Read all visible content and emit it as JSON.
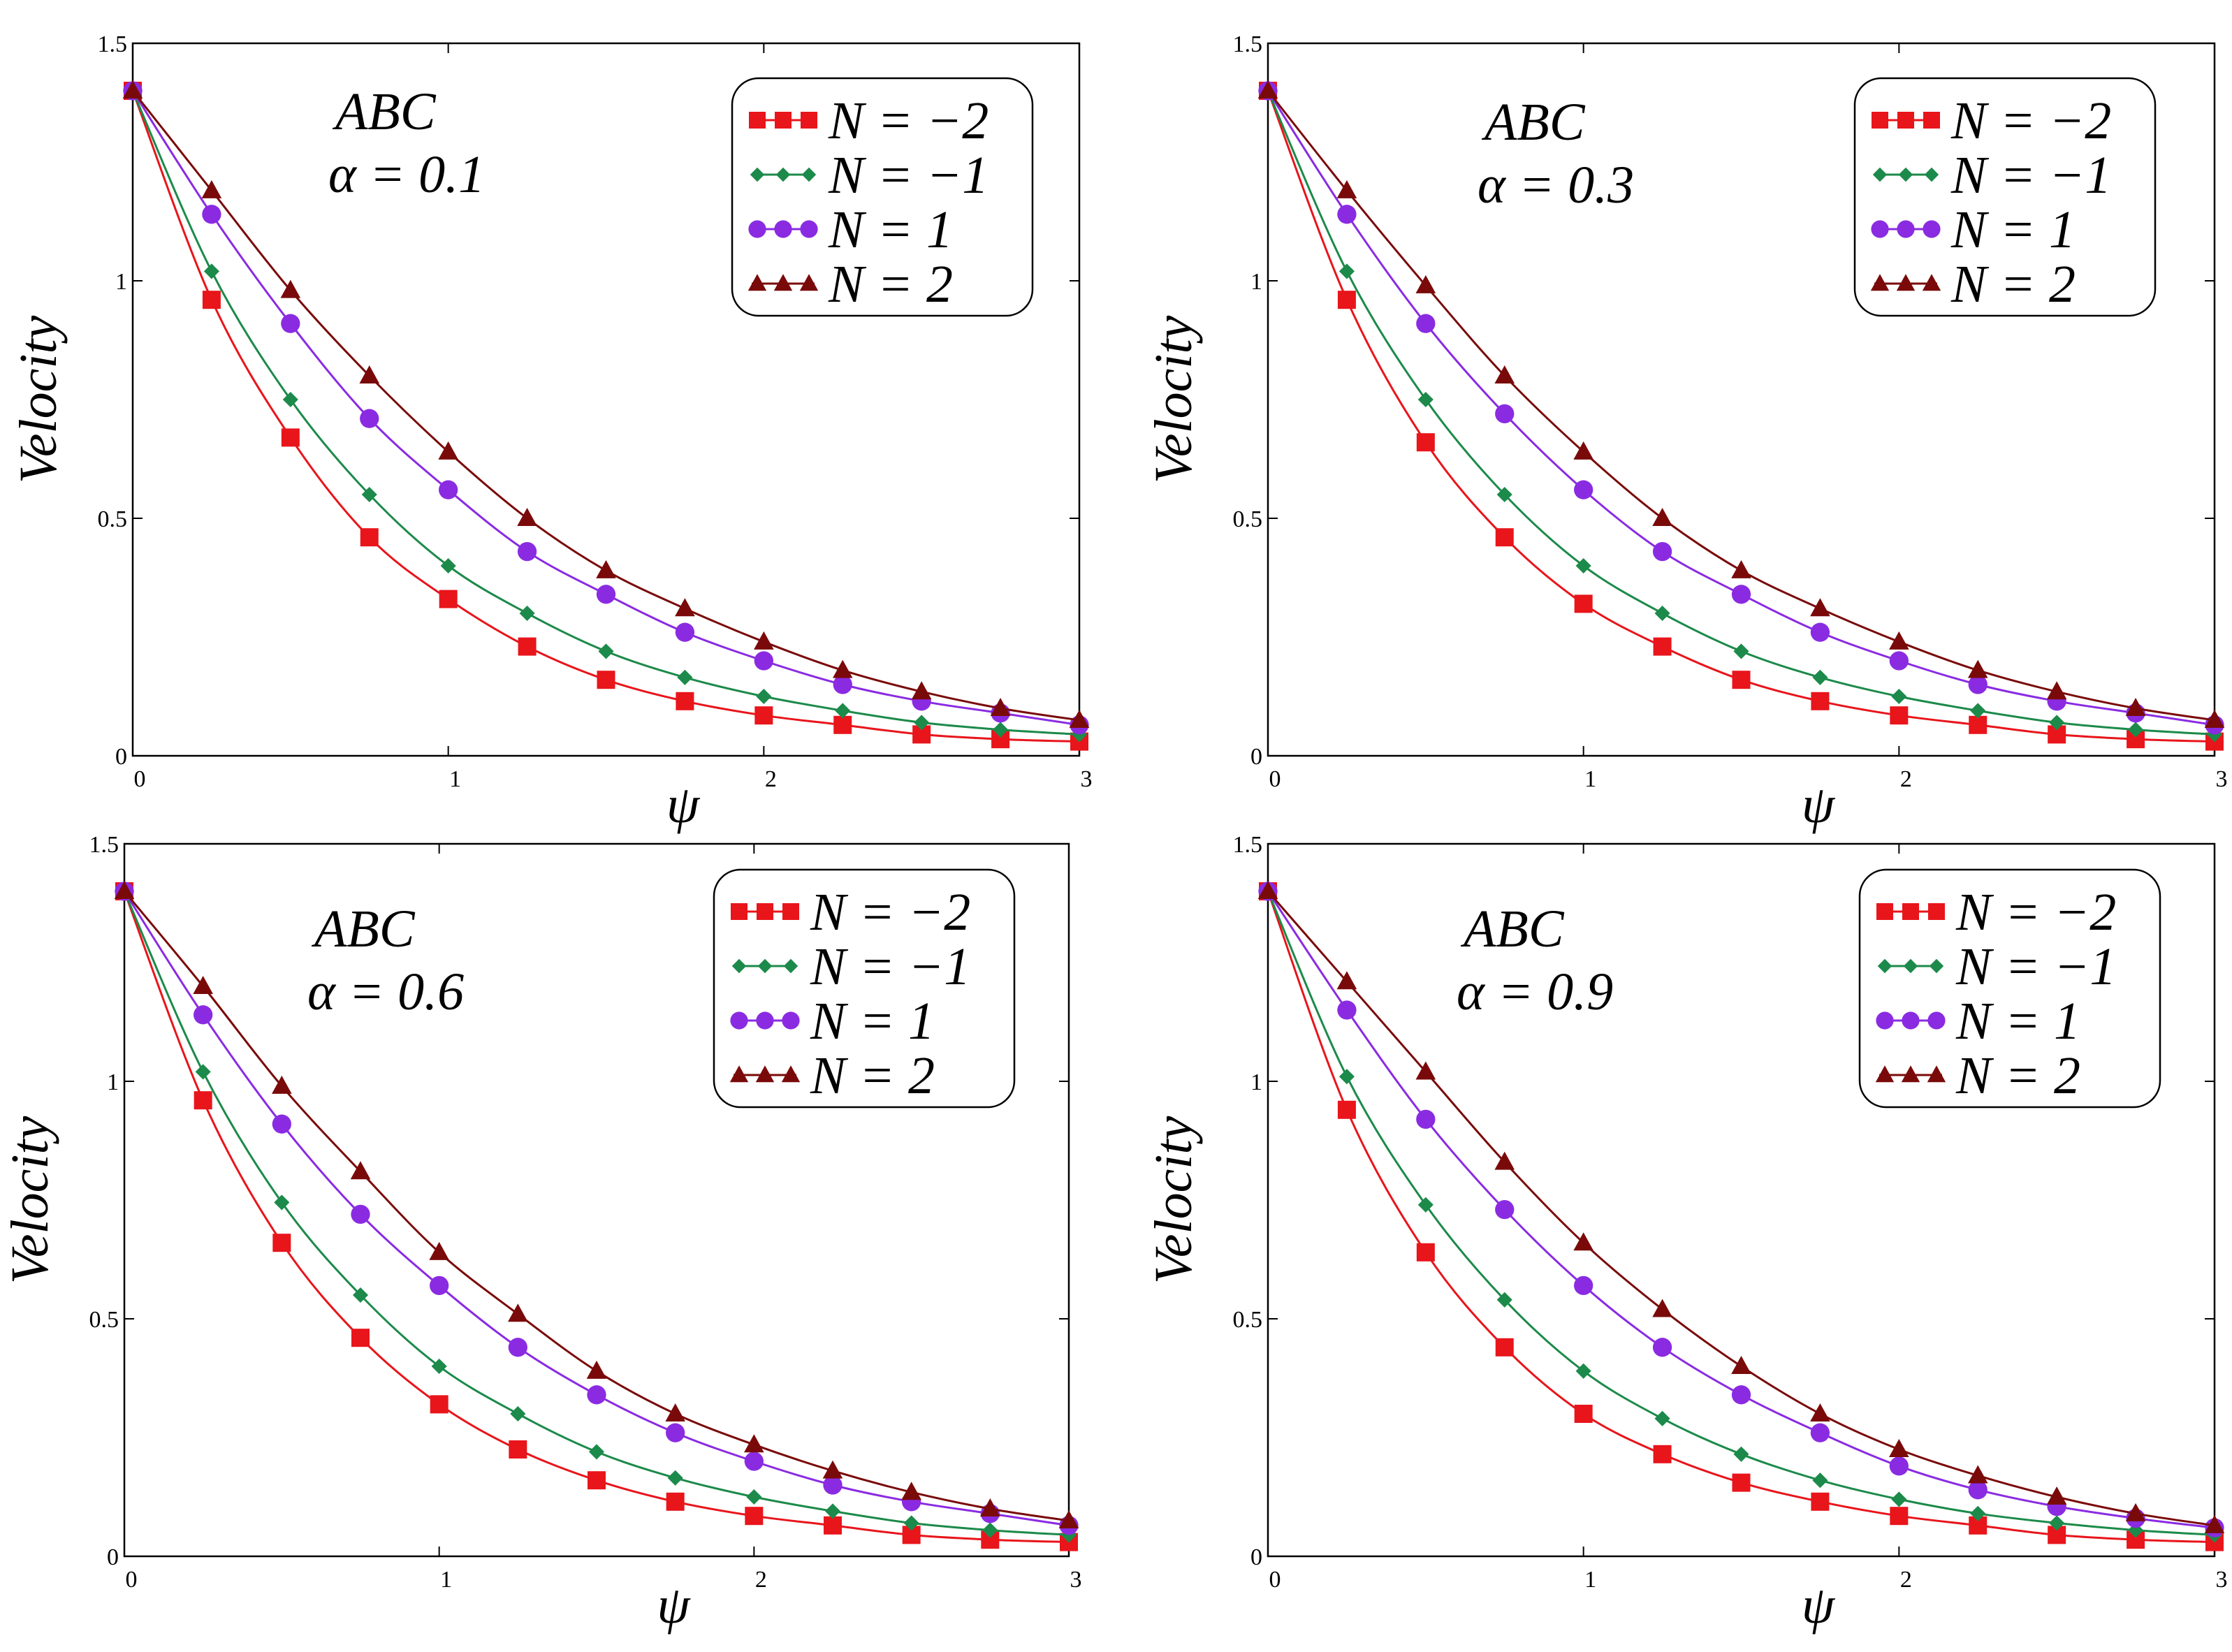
{
  "chart_data": [
    {
      "type": "line",
      "annotation": "ABC",
      "alpha_label": "α = 0.1",
      "xlabel": "ψ",
      "ylabel": "Velocity",
      "xlim": [
        0,
        3
      ],
      "ylim": [
        0,
        1.5
      ],
      "xticks": [
        "0",
        "1",
        "2",
        "3"
      ],
      "yticks": [
        "0",
        "0.5",
        "1",
        "1.5"
      ],
      "grid": false,
      "legend_position": "top-right",
      "series": [
        {
          "name": "N = −2",
          "color": "#e8151b",
          "marker": "square",
          "x": [
            0,
            0.25,
            0.5,
            0.75,
            1.0,
            1.25,
            1.5,
            1.75,
            2.0,
            2.25,
            2.5,
            2.75,
            3.0
          ],
          "values": [
            1.4,
            0.96,
            0.67,
            0.46,
            0.33,
            0.23,
            0.16,
            0.115,
            0.085,
            0.065,
            0.045,
            0.035,
            0.03
          ]
        },
        {
          "name": "N = −1",
          "color": "#1c8a4a",
          "marker": "diamond",
          "x": [
            0,
            0.25,
            0.5,
            0.75,
            1.0,
            1.25,
            1.5,
            1.75,
            2.0,
            2.25,
            2.5,
            2.75,
            3.0
          ],
          "values": [
            1.4,
            1.02,
            0.75,
            0.55,
            0.4,
            0.3,
            0.22,
            0.165,
            0.125,
            0.095,
            0.07,
            0.055,
            0.045
          ]
        },
        {
          "name": "N = 1",
          "color": "#8a2be2",
          "marker": "circle",
          "x": [
            0,
            0.25,
            0.5,
            0.75,
            1.0,
            1.25,
            1.5,
            1.75,
            2.0,
            2.25,
            2.5,
            2.75,
            3.0
          ],
          "values": [
            1.4,
            1.14,
            0.91,
            0.71,
            0.56,
            0.43,
            0.34,
            0.26,
            0.2,
            0.15,
            0.115,
            0.09,
            0.065
          ]
        },
        {
          "name": "N = 2",
          "color": "#7a0a0a",
          "marker": "triangle",
          "x": [
            0,
            0.25,
            0.5,
            0.75,
            1.0,
            1.25,
            1.5,
            1.75,
            2.0,
            2.25,
            2.5,
            2.75,
            3.0
          ],
          "values": [
            1.4,
            1.19,
            0.98,
            0.8,
            0.64,
            0.5,
            0.39,
            0.31,
            0.24,
            0.18,
            0.135,
            0.1,
            0.075
          ]
        }
      ]
    },
    {
      "type": "line",
      "annotation": "ABC",
      "alpha_label": "α = 0.3",
      "xlabel": "ψ",
      "ylabel": "Velocity",
      "xlim": [
        0,
        3
      ],
      "ylim": [
        0,
        1.5
      ],
      "xticks": [
        "0",
        "1",
        "2",
        "3"
      ],
      "yticks": [
        "0",
        "0.5",
        "1",
        "1.5"
      ],
      "grid": false,
      "legend_position": "top-right",
      "series": [
        {
          "name": "N = −2",
          "color": "#e8151b",
          "marker": "square",
          "x": [
            0,
            0.25,
            0.5,
            0.75,
            1.0,
            1.25,
            1.5,
            1.75,
            2.0,
            2.25,
            2.5,
            2.75,
            3.0
          ],
          "values": [
            1.4,
            0.96,
            0.66,
            0.46,
            0.32,
            0.23,
            0.16,
            0.115,
            0.085,
            0.065,
            0.045,
            0.035,
            0.03
          ]
        },
        {
          "name": "N = −1",
          "color": "#1c8a4a",
          "marker": "diamond",
          "x": [
            0,
            0.25,
            0.5,
            0.75,
            1.0,
            1.25,
            1.5,
            1.75,
            2.0,
            2.25,
            2.5,
            2.75,
            3.0
          ],
          "values": [
            1.4,
            1.02,
            0.75,
            0.55,
            0.4,
            0.3,
            0.22,
            0.165,
            0.125,
            0.095,
            0.07,
            0.055,
            0.045
          ]
        },
        {
          "name": "N = 1",
          "color": "#8a2be2",
          "marker": "circle",
          "x": [
            0,
            0.25,
            0.5,
            0.75,
            1.0,
            1.25,
            1.5,
            1.75,
            2.0,
            2.25,
            2.5,
            2.75,
            3.0
          ],
          "values": [
            1.4,
            1.14,
            0.91,
            0.72,
            0.56,
            0.43,
            0.34,
            0.26,
            0.2,
            0.15,
            0.115,
            0.09,
            0.065
          ]
        },
        {
          "name": "N = 2",
          "color": "#7a0a0a",
          "marker": "triangle",
          "x": [
            0,
            0.25,
            0.5,
            0.75,
            1.0,
            1.25,
            1.5,
            1.75,
            2.0,
            2.25,
            2.5,
            2.75,
            3.0
          ],
          "values": [
            1.4,
            1.19,
            0.99,
            0.8,
            0.64,
            0.5,
            0.39,
            0.31,
            0.24,
            0.18,
            0.135,
            0.1,
            0.075
          ]
        }
      ]
    },
    {
      "type": "line",
      "annotation": "ABC",
      "alpha_label": "α = 0.6",
      "xlabel": "ψ",
      "ylabel": "Velocity",
      "xlim": [
        0,
        3
      ],
      "ylim": [
        0,
        1.5
      ],
      "xticks": [
        "0",
        "1",
        "2",
        "3"
      ],
      "yticks": [
        "0",
        "0.5",
        "1",
        "1.5"
      ],
      "grid": false,
      "legend_position": "top-right",
      "series": [
        {
          "name": "N = −2",
          "color": "#e8151b",
          "marker": "square",
          "x": [
            0,
            0.25,
            0.5,
            0.75,
            1.0,
            1.25,
            1.5,
            1.75,
            2.0,
            2.25,
            2.5,
            2.75,
            3.0
          ],
          "values": [
            1.4,
            0.96,
            0.66,
            0.46,
            0.32,
            0.225,
            0.16,
            0.115,
            0.085,
            0.065,
            0.045,
            0.035,
            0.03
          ]
        },
        {
          "name": "N = −1",
          "color": "#1c8a4a",
          "marker": "diamond",
          "x": [
            0,
            0.25,
            0.5,
            0.75,
            1.0,
            1.25,
            1.5,
            1.75,
            2.0,
            2.25,
            2.5,
            2.75,
            3.0
          ],
          "values": [
            1.4,
            1.02,
            0.745,
            0.55,
            0.4,
            0.3,
            0.22,
            0.165,
            0.125,
            0.095,
            0.07,
            0.055,
            0.045
          ]
        },
        {
          "name": "N = 1",
          "color": "#8a2be2",
          "marker": "circle",
          "x": [
            0,
            0.25,
            0.5,
            0.75,
            1.0,
            1.25,
            1.5,
            1.75,
            2.0,
            2.25,
            2.5,
            2.75,
            3.0
          ],
          "values": [
            1.4,
            1.14,
            0.91,
            0.72,
            0.57,
            0.44,
            0.34,
            0.26,
            0.2,
            0.15,
            0.115,
            0.09,
            0.065
          ]
        },
        {
          "name": "N = 2",
          "color": "#7a0a0a",
          "marker": "triangle",
          "x": [
            0,
            0.25,
            0.5,
            0.75,
            1.0,
            1.25,
            1.5,
            1.75,
            2.0,
            2.25,
            2.5,
            2.75,
            3.0
          ],
          "values": [
            1.4,
            1.2,
            0.99,
            0.81,
            0.64,
            0.51,
            0.39,
            0.3,
            0.235,
            0.18,
            0.135,
            0.1,
            0.075
          ]
        }
      ]
    },
    {
      "type": "line",
      "annotation": "ABC",
      "alpha_label": "α = 0.9",
      "xlabel": "ψ",
      "ylabel": "Velocity",
      "xlim": [
        0,
        3
      ],
      "ylim": [
        0,
        1.5
      ],
      "xticks": [
        "0",
        "1",
        "2",
        "3"
      ],
      "yticks": [
        "0",
        "0.5",
        "1",
        "1.5"
      ],
      "grid": false,
      "legend_position": "top-right",
      "series": [
        {
          "name": "N = −2",
          "color": "#e8151b",
          "marker": "square",
          "x": [
            0,
            0.25,
            0.5,
            0.75,
            1.0,
            1.25,
            1.5,
            1.75,
            2.0,
            2.25,
            2.5,
            2.75,
            3.0
          ],
          "values": [
            1.4,
            0.94,
            0.64,
            0.44,
            0.3,
            0.215,
            0.155,
            0.115,
            0.085,
            0.065,
            0.045,
            0.035,
            0.03
          ]
        },
        {
          "name": "N = −1",
          "color": "#1c8a4a",
          "marker": "diamond",
          "x": [
            0,
            0.25,
            0.5,
            0.75,
            1.0,
            1.25,
            1.5,
            1.75,
            2.0,
            2.25,
            2.5,
            2.75,
            3.0
          ],
          "values": [
            1.4,
            1.01,
            0.74,
            0.54,
            0.39,
            0.29,
            0.215,
            0.16,
            0.12,
            0.09,
            0.07,
            0.055,
            0.045
          ]
        },
        {
          "name": "N = 1",
          "color": "#8a2be2",
          "marker": "circle",
          "x": [
            0,
            0.25,
            0.5,
            0.75,
            1.0,
            1.25,
            1.5,
            1.75,
            2.0,
            2.25,
            2.5,
            2.75,
            3.0
          ],
          "values": [
            1.4,
            1.15,
            0.92,
            0.73,
            0.57,
            0.44,
            0.34,
            0.26,
            0.19,
            0.14,
            0.105,
            0.08,
            0.06
          ]
        },
        {
          "name": "N = 2",
          "color": "#7a0a0a",
          "marker": "triangle",
          "x": [
            0,
            0.25,
            0.5,
            0.75,
            1.0,
            1.25,
            1.5,
            1.75,
            2.0,
            2.25,
            2.5,
            2.75,
            3.0
          ],
          "values": [
            1.4,
            1.21,
            1.02,
            0.83,
            0.66,
            0.52,
            0.4,
            0.3,
            0.225,
            0.17,
            0.125,
            0.09,
            0.065
          ]
        }
      ]
    }
  ]
}
